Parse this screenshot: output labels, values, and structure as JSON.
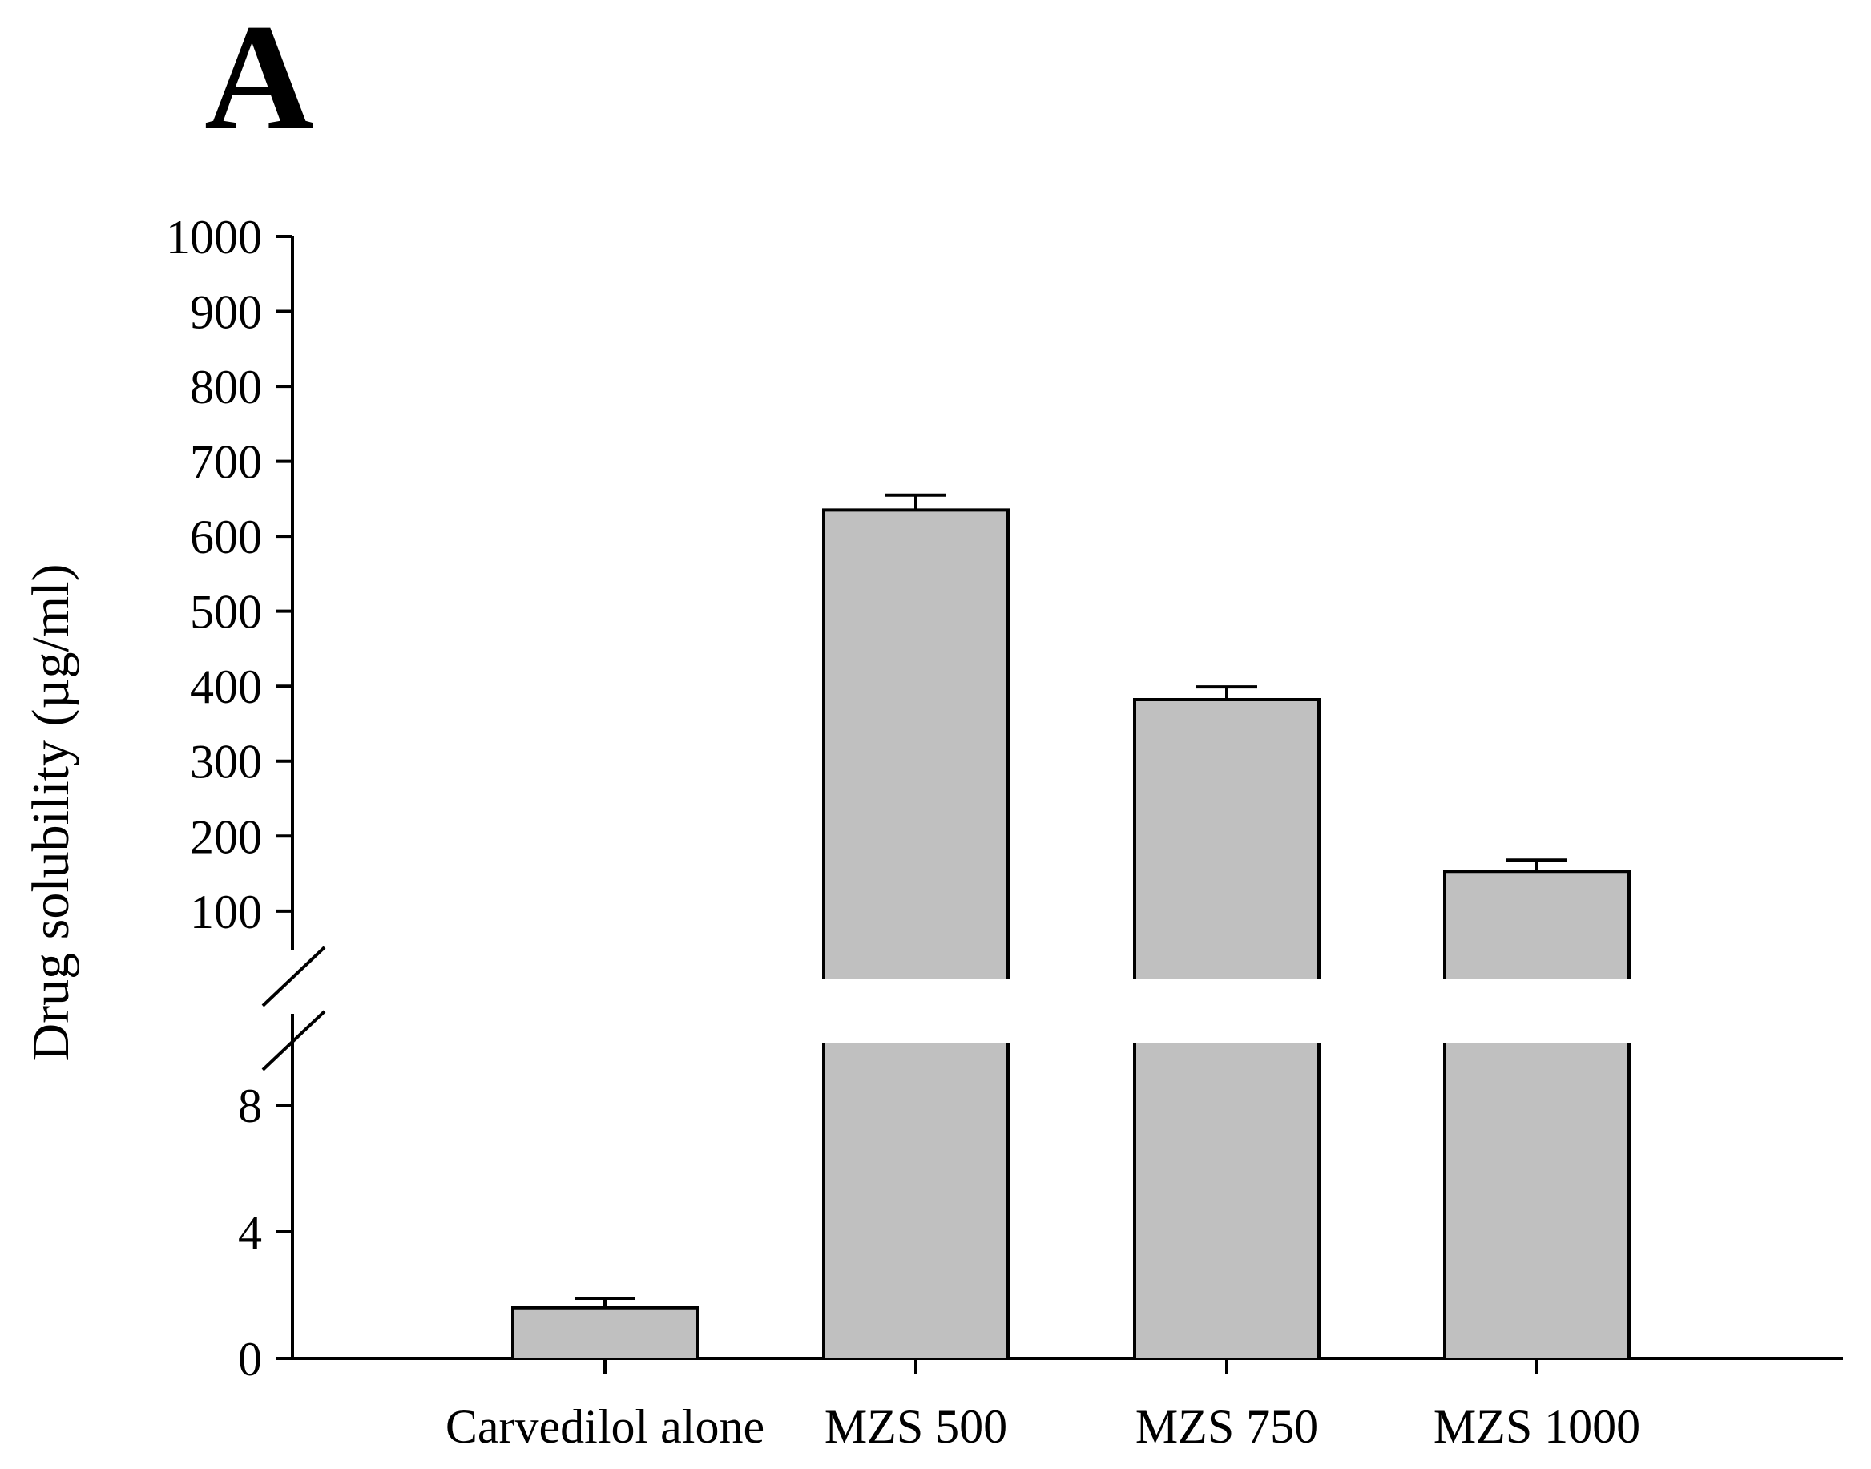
{
  "panel_label": "A",
  "chart_data": {
    "type": "bar",
    "title": "",
    "xlabel": "",
    "ylabel": "Drug solubility (µg/ml)",
    "categories": [
      "Carvedilol alone",
      "MZS 500",
      "MZS 750",
      "MZS 1000"
    ],
    "values": [
      1.6,
      635,
      382,
      153
    ],
    "error": [
      0.3,
      20,
      17,
      15
    ],
    "broken_axis": true,
    "lower_segment": {
      "ylim": [
        0,
        10
      ],
      "ticks": [
        0,
        4,
        8
      ]
    },
    "upper_segment": {
      "ylim": [
        10,
        1000
      ],
      "ticks": [
        100,
        200,
        300,
        400,
        500,
        600,
        700,
        800,
        900,
        1000
      ]
    },
    "grid": false,
    "legend": "none",
    "bar_color": "#c0c0c0",
    "edge_color": "#000000"
  }
}
